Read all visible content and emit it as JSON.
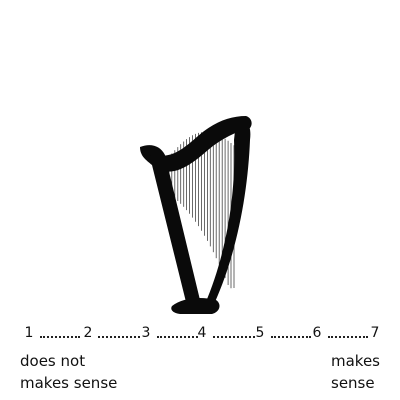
{
  "scale": {
    "ticks": [
      "1",
      "2",
      "3",
      "4",
      "5",
      "6",
      "7"
    ],
    "left_anchor": "does not\nmakes sense",
    "right_anchor": "makes\nsense"
  },
  "image": {
    "icon": "harp-icon",
    "fill_color": "#0a0a0a"
  }
}
